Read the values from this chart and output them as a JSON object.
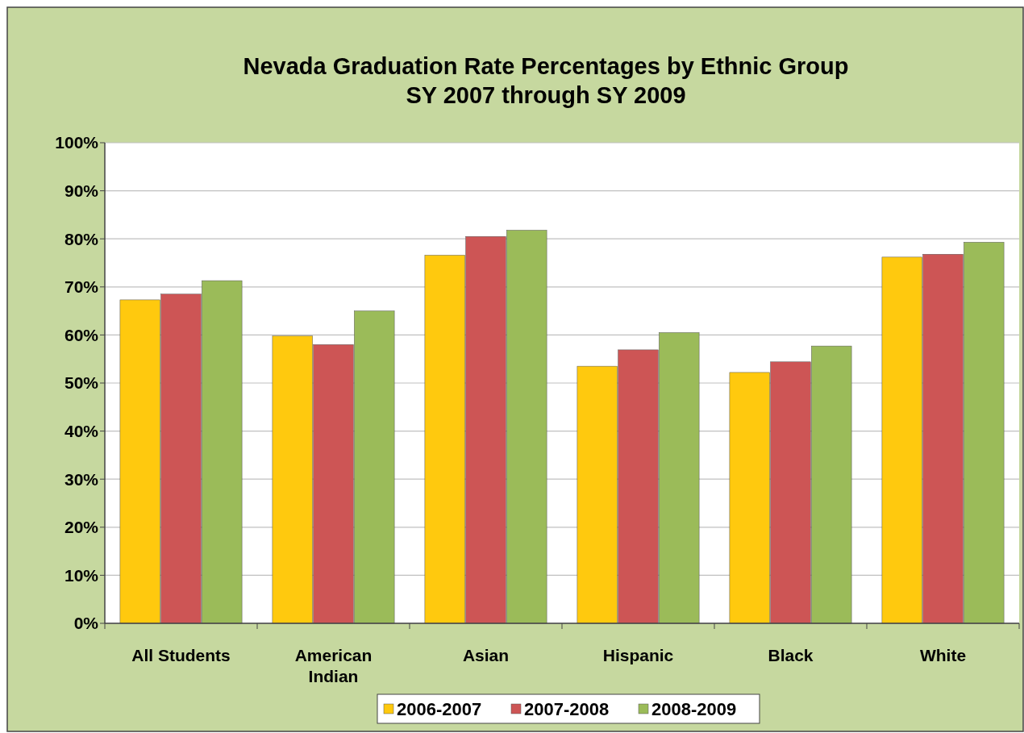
{
  "chart_data": {
    "type": "bar",
    "title": "Nevada Graduation Rate Percentages by Ethnic Group\nSY 2007 through SY 2009",
    "categories": [
      "All Students",
      "American Indian",
      "Asian",
      "Hispanic",
      "Black",
      "White"
    ],
    "series": [
      {
        "name": "2006-2007",
        "color": "#ffc90e",
        "values": [
          67.3,
          59.8,
          76.6,
          53.5,
          52.2,
          76.2
        ]
      },
      {
        "name": "2007-2008",
        "color": "#cd5555",
        "values": [
          68.5,
          58.0,
          80.5,
          56.9,
          54.4,
          76.8
        ]
      },
      {
        "name": "2008-2009",
        "color": "#9bbb59",
        "values": [
          71.3,
          65.0,
          81.8,
          60.5,
          57.7,
          79.3
        ]
      }
    ],
    "ylim": [
      0,
      100
    ],
    "yticks": [
      {
        "value": 0,
        "label": "0%"
      },
      {
        "value": 10,
        "label": "10%"
      },
      {
        "value": 20,
        "label": "20%"
      },
      {
        "value": 30,
        "label": "30%"
      },
      {
        "value": 40,
        "label": "40%"
      },
      {
        "value": 50,
        "label": "50%"
      },
      {
        "value": 60,
        "label": "60%"
      },
      {
        "value": 70,
        "label": "70%"
      },
      {
        "value": 80,
        "label": "80%"
      },
      {
        "value": 90,
        "label": "90%"
      },
      {
        "value": 100,
        "label": "100%"
      }
    ],
    "grid": "y",
    "legend": "bottom"
  }
}
